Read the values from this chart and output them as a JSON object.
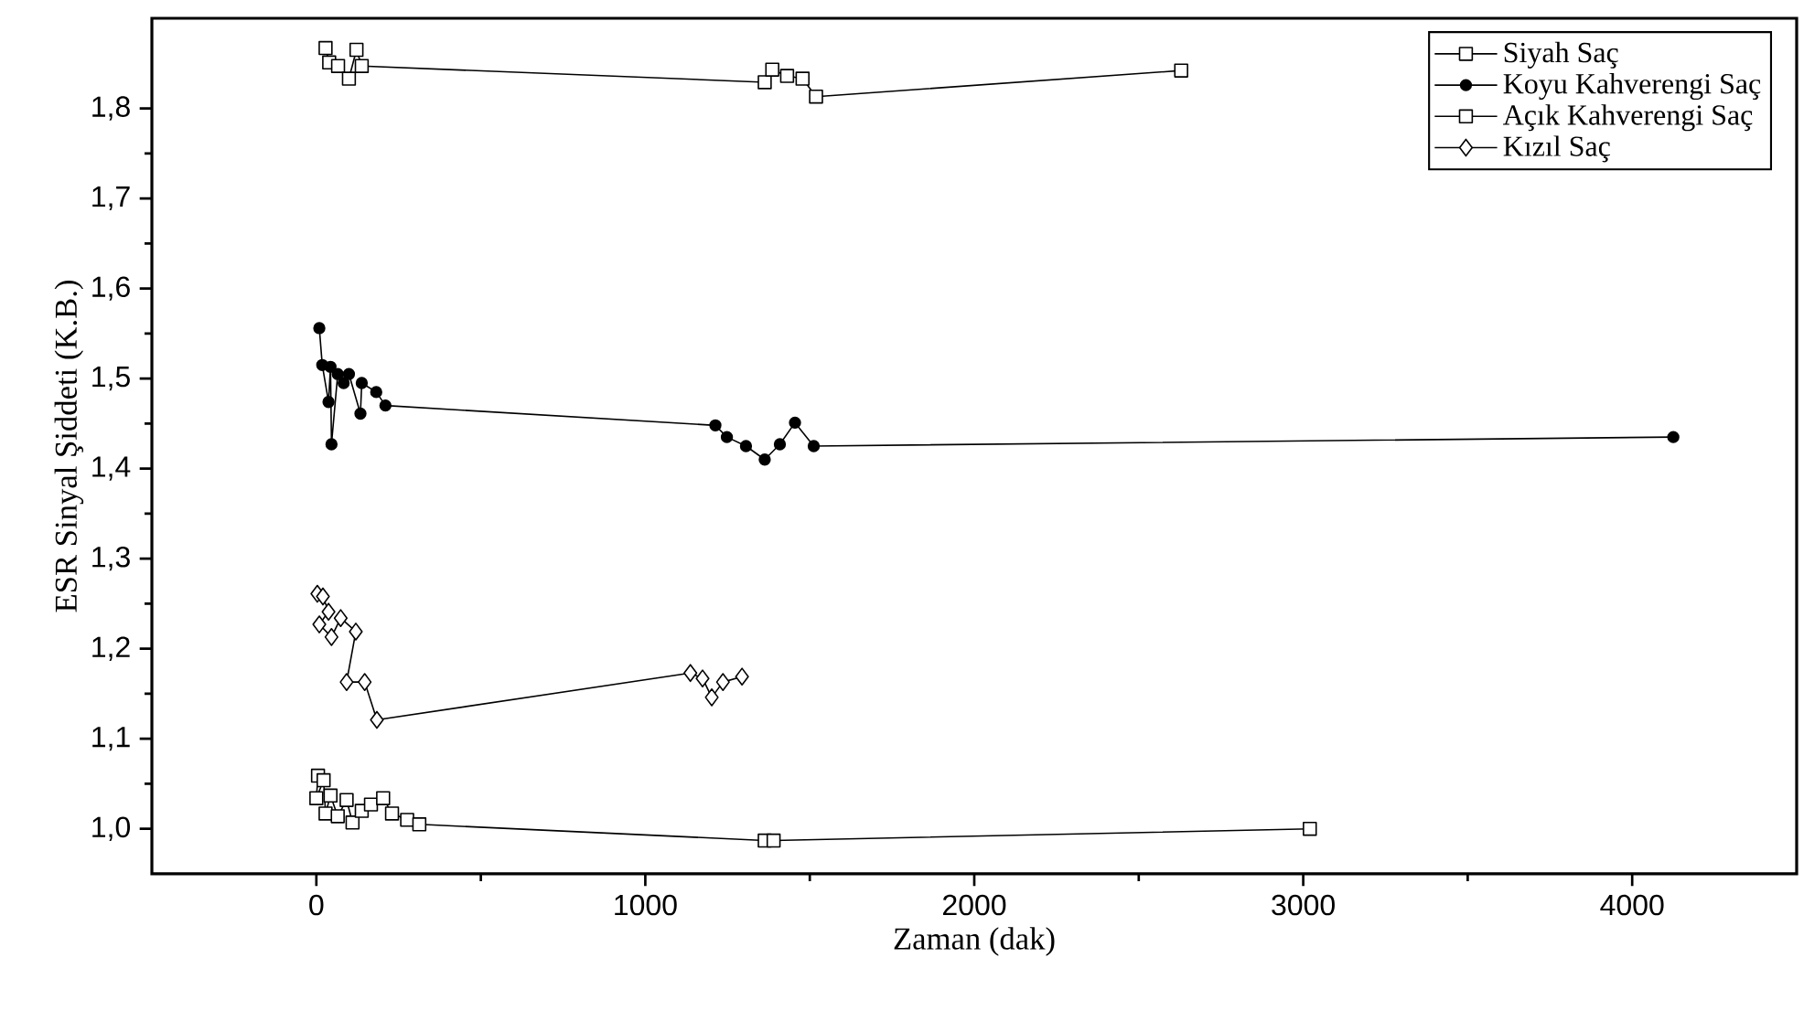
{
  "chart_data": {
    "type": "line",
    "xlabel": "Zaman (dak)",
    "ylabel": "ESR Sinyal Şiddeti (K.B.)",
    "xlim": [
      -500,
      4500
    ],
    "xticks": [
      0,
      1000,
      2000,
      3000,
      4000
    ],
    "ylim": [
      0.95,
      1.9
    ],
    "yticks": [
      {
        "value": 1.0,
        "label": "1,0"
      },
      {
        "value": 1.1,
        "label": "1,1"
      },
      {
        "value": 1.2,
        "label": "1,2"
      },
      {
        "value": 1.3,
        "label": "1,3"
      },
      {
        "value": 1.4,
        "label": "1,4"
      },
      {
        "value": 1.5,
        "label": "1,5"
      },
      {
        "value": 1.6,
        "label": "1,6"
      },
      {
        "value": 1.7,
        "label": "1,7"
      },
      {
        "value": 1.8,
        "label": "1,8"
      }
    ],
    "legend": "top right",
    "grid": false,
    "series": [
      {
        "name": "Siyah Saç",
        "color": "#000000",
        "marker": "square",
        "x": [
          28,
          39,
          66,
          99,
          122,
          138,
          1363,
          1386,
          1431,
          1478,
          1519,
          2629
        ],
        "values": [
          1.867,
          1.851,
          1.847,
          1.833,
          1.865,
          1.847,
          1.829,
          1.843,
          1.836,
          1.833,
          1.813,
          1.842
        ]
      },
      {
        "name": "Koyu Kahverengi Saç",
        "color": "#000000",
        "marker": "circle",
        "x": [
          9,
          18,
          37,
          43,
          46,
          65,
          83,
          99,
          134,
          138,
          182,
          210,
          1213,
          1248,
          1306,
          1363,
          1409,
          1455,
          1512,
          4125
        ],
        "values": [
          1.556,
          1.515,
          1.474,
          1.513,
          1.427,
          1.505,
          1.495,
          1.505,
          1.461,
          1.495,
          1.485,
          1.47,
          1.448,
          1.435,
          1.425,
          1.41,
          1.427,
          1.451,
          1.425,
          1.435
        ]
      },
      {
        "name": "Açık Kahverengi Saç",
        "color": "#000000",
        "marker": "square",
        "x": [
          5,
          0,
          22,
          28,
          43,
          65,
          92,
          110,
          138,
          166,
          203,
          230,
          276,
          313,
          1363,
          1390,
          3020
        ],
        "values": [
          1.059,
          1.034,
          1.054,
          1.017,
          1.037,
          1.014,
          1.032,
          1.007,
          1.02,
          1.027,
          1.034,
          1.017,
          1.01,
          1.005,
          0.987,
          0.987,
          1.0
        ]
      },
      {
        "name": "Kızıl Saç",
        "color": "#000000",
        "marker": "diamond",
        "x": [
          3,
          20,
          37,
          9,
          46,
          74,
          120,
          92,
          147,
          184,
          1137,
          1174,
          1202,
          1236,
          1294
        ],
        "values": [
          1.261,
          1.258,
          1.241,
          1.227,
          1.213,
          1.234,
          1.219,
          1.163,
          1.163,
          1.121,
          1.173,
          1.167,
          1.146,
          1.163,
          1.169
        ]
      }
    ]
  }
}
